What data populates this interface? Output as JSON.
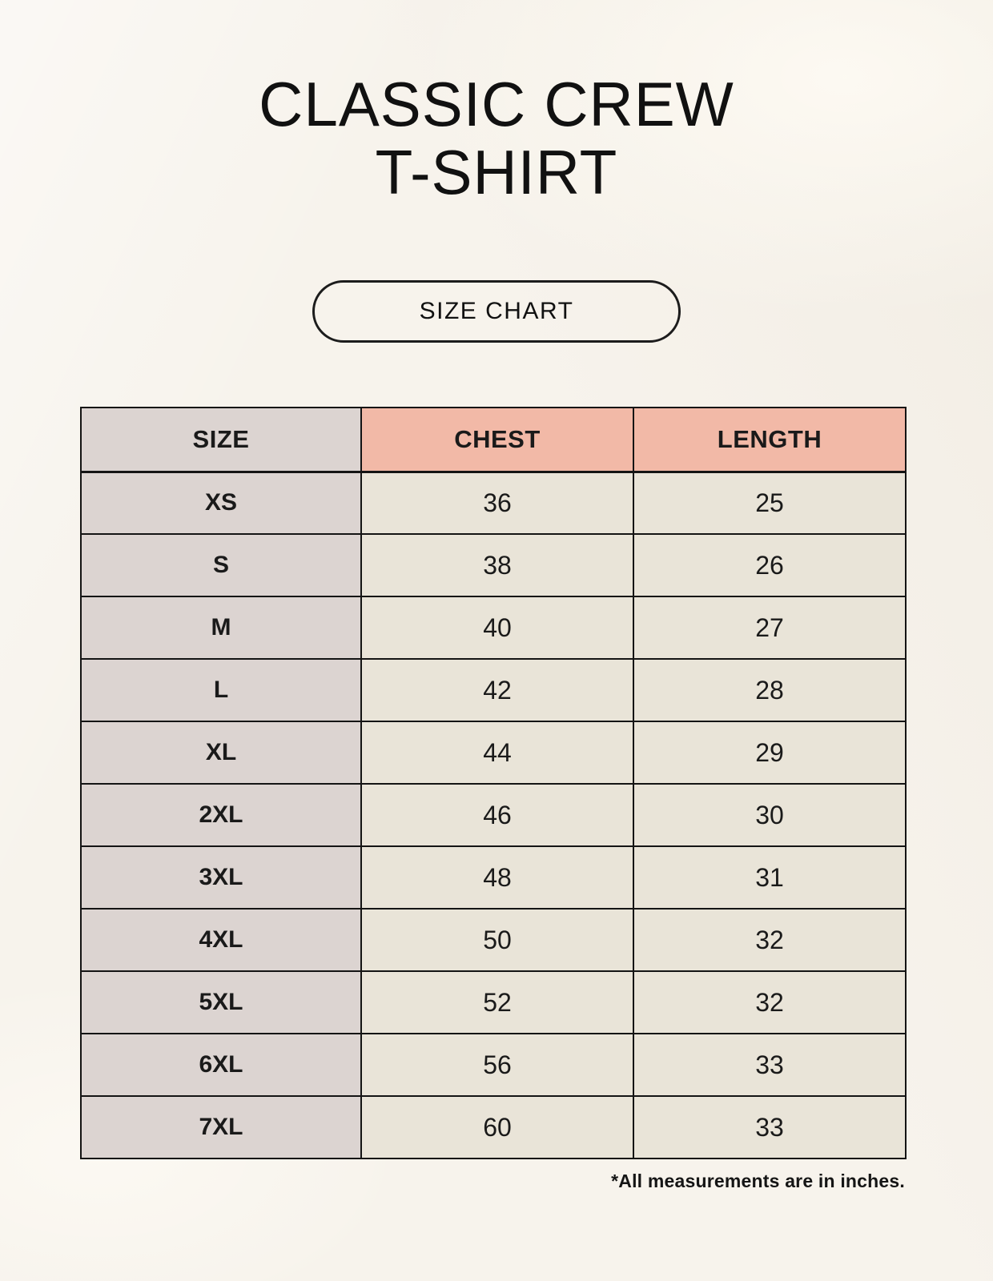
{
  "page": {
    "title": "CLASSIC CREW\nT-SHIRT",
    "button_label": "SIZE CHART",
    "footnote": "*All measurements are in inches."
  },
  "colors": {
    "background": "#f7f3ec",
    "header_pink": "#f2b9a7",
    "size_column_gray": "#dcd4d1",
    "cell_cream": "#e9e4d8",
    "border_black": "#141414"
  },
  "table": {
    "columns": [
      "SIZE",
      "CHEST",
      "LENGTH"
    ],
    "rows": [
      {
        "size": "XS",
        "chest": "36",
        "length": "25"
      },
      {
        "size": "S",
        "chest": "38",
        "length": "26"
      },
      {
        "size": "M",
        "chest": "40",
        "length": "27"
      },
      {
        "size": "L",
        "chest": "42",
        "length": "28"
      },
      {
        "size": "XL",
        "chest": "44",
        "length": "29"
      },
      {
        "size": "2XL",
        "chest": "46",
        "length": "30"
      },
      {
        "size": "3XL",
        "chest": "48",
        "length": "31"
      },
      {
        "size": "4XL",
        "chest": "50",
        "length": "32"
      },
      {
        "size": "5XL",
        "chest": "52",
        "length": "32"
      },
      {
        "size": "6XL",
        "chest": "56",
        "length": "33"
      },
      {
        "size": "7XL",
        "chest": "60",
        "length": "33"
      }
    ]
  }
}
